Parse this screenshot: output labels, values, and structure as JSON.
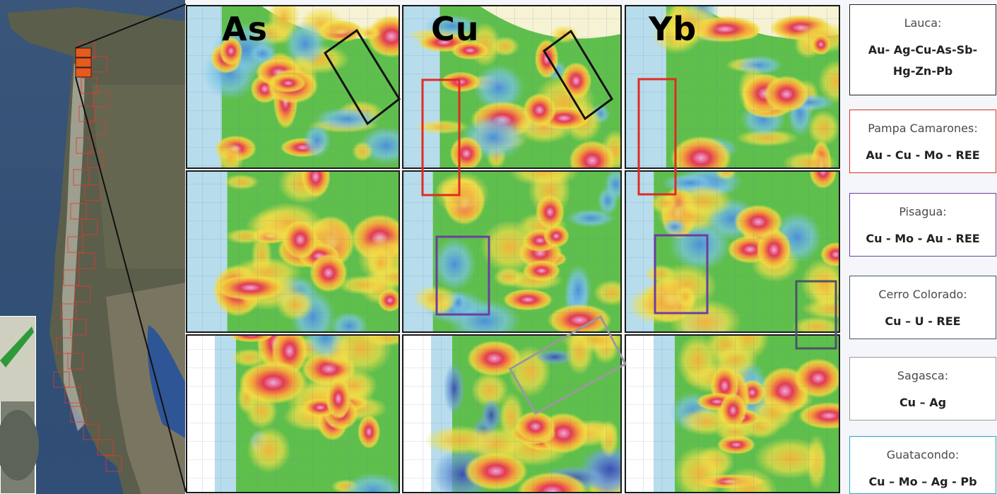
{
  "panels": [
    {
      "label": "As"
    },
    {
      "label": "Cu"
    },
    {
      "label": "Yb"
    }
  ],
  "legend": [
    {
      "name": "Lauca:",
      "elements": "Au- Ag-Cu-As-Sb-Hg-Zn-Pb",
      "color": "#222222"
    },
    {
      "name": "Pampa Camarones:",
      "elements": "Au - Cu - Mo - REE",
      "color": "#d9302c"
    },
    {
      "name": "Pisagua:",
      "elements": "Cu - Mo - Au - REE",
      "color": "#6b3fa0"
    },
    {
      "name": "Cerro Colorado:",
      "elements": "Cu – U - REE",
      "color": "#4a5668"
    },
    {
      "name": "Sagasca:",
      "elements": "Cu – Ag",
      "color": "#9a9a9a"
    },
    {
      "name": "Guatacondo:",
      "elements": "Cu – Mo – Ag - Pb",
      "color": "#27a9c6"
    }
  ],
  "colors": {
    "high": "#e2324a",
    "anomaly": "#e79ad8",
    "mid": "#f2d23a",
    "low": "#4fb84a",
    "lowest": "#86c9e6"
  }
}
